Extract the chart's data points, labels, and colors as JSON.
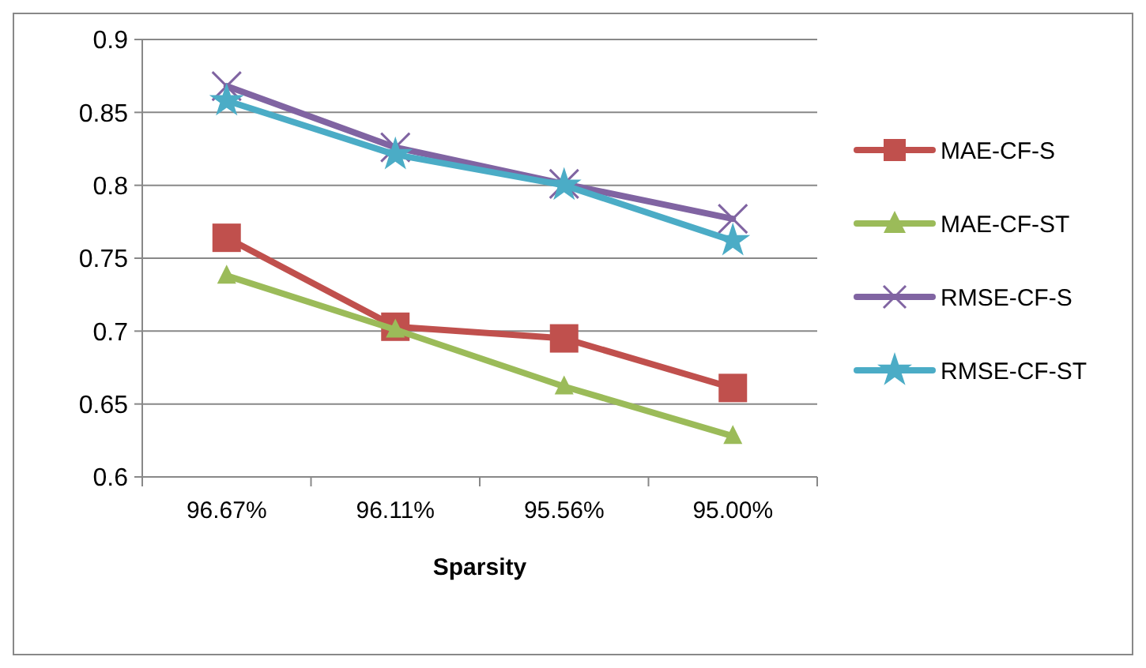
{
  "chart_data": {
    "type": "line",
    "xlabel": "Sparsity",
    "categories": [
      "96.67%",
      "96.11%",
      "95.56%",
      "95.00%"
    ],
    "ylim": [
      0.6,
      0.9
    ],
    "yticks": [
      0.6,
      0.65,
      0.7,
      0.75,
      0.8,
      0.85,
      0.9
    ],
    "grid": "y",
    "legend": "right",
    "series": [
      {
        "name": "MAE-CF-S",
        "color": "#c0504d",
        "marker": "square",
        "values": [
          0.764,
          0.703,
          0.695,
          0.661
        ]
      },
      {
        "name": "MAE-CF-ST",
        "color": "#9bbb59",
        "marker": "triangle",
        "values": [
          0.738,
          0.701,
          0.662,
          0.628
        ]
      },
      {
        "name": "RMSE-CF-S",
        "color": "#8064a2",
        "marker": "cross",
        "values": [
          0.868,
          0.826,
          0.801,
          0.777
        ]
      },
      {
        "name": "RMSE-CF-ST",
        "color": "#4bacc6",
        "marker": "star",
        "values": [
          0.858,
          0.821,
          0.8,
          0.762
        ]
      }
    ]
  }
}
